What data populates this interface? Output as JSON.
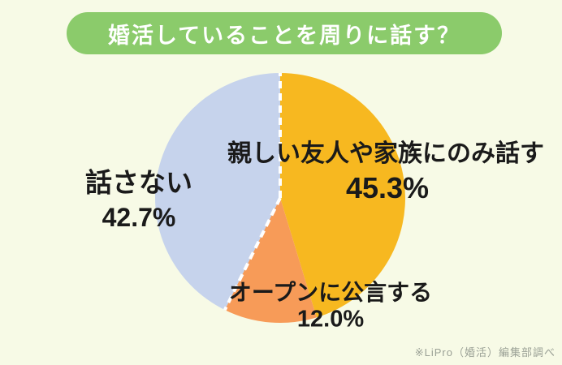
{
  "theme": {
    "background": "#F7FAE6",
    "banner_green": "#8BCB6B",
    "title_text": "#FFFFFF",
    "label_text": "#1A1A1A",
    "footer_text": "#9BA196"
  },
  "footer": {
    "credit": "※LiPro（婚活）編集部調べ"
  },
  "chart_data": {
    "type": "pie",
    "title": "婚活していることを周りに話す？",
    "start": "top",
    "direction": "clockwise",
    "legend": "labels-on-chart",
    "slices": [
      {
        "label": "親しい友人や家族にのみ話す",
        "value": 45.3,
        "value_label": "45.3%",
        "color": "#F7B820"
      },
      {
        "label": "オープンに公言する",
        "value": 12.0,
        "value_label": "12.0%",
        "color": "#F79B58"
      },
      {
        "label": "話さない",
        "value": 42.7,
        "value_label": "42.7%",
        "color": "#C6D3EC"
      }
    ],
    "divider": {
      "color": "#FFFFFF",
      "width": 4,
      "dash": [
        9,
        6
      ]
    },
    "dashed_dividers_before_slices": [
      0,
      2
    ]
  }
}
